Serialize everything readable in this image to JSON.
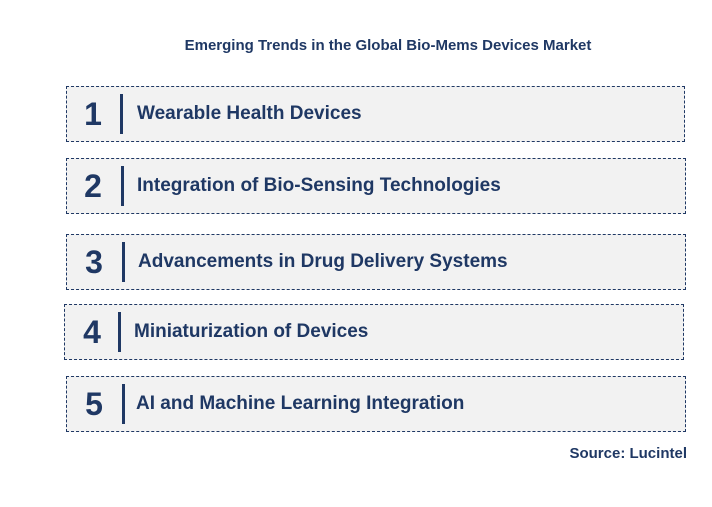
{
  "title": "Emerging Trends in the Global Bio-Mems Devices Market",
  "trends": [
    {
      "number": "1",
      "label": "Wearable Health Devices"
    },
    {
      "number": "2",
      "label": "Integration of Bio-Sensing Technologies"
    },
    {
      "number": "3",
      "label": "Advancements in Drug Delivery Systems"
    },
    {
      "number": "4",
      "label": "Miniaturization of Devices"
    },
    {
      "number": "5",
      "label": "AI and Machine Learning Integration"
    }
  ],
  "source": "Source: Lucintel",
  "colors": {
    "text": "#1f3864",
    "box_fill": "#f2f2f2"
  }
}
